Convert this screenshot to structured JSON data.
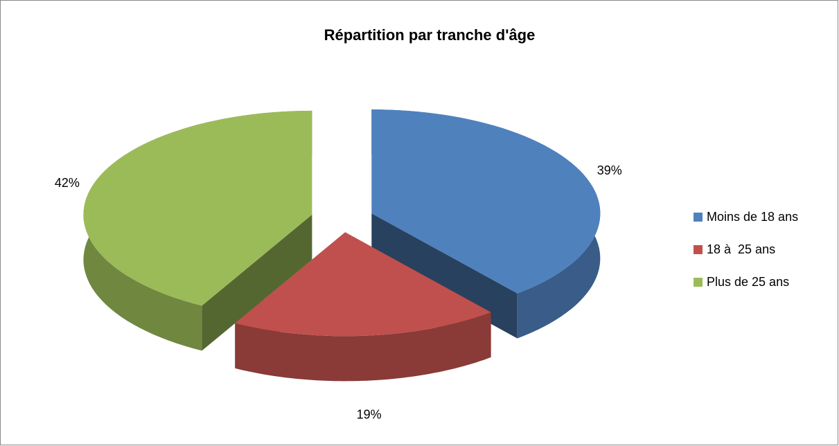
{
  "chart_data": {
    "type": "pie",
    "title": "Répartition par tranche d'âge",
    "categories": [
      "Moins de 18 ans",
      "18 à  25 ans",
      "Plus de 25 ans"
    ],
    "values": [
      39,
      19,
      42
    ],
    "value_labels": [
      "39%",
      "19%",
      "42%"
    ],
    "colors": [
      "#4f81bd",
      "#c0504d",
      "#9bbb59"
    ],
    "legend": "right"
  }
}
